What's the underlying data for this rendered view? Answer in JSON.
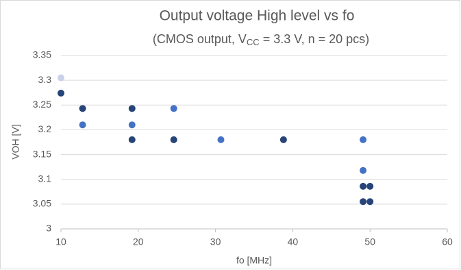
{
  "chart_data": {
    "type": "scatter",
    "title": "Output voltage High level vs fo",
    "subtitle": {
      "before": "(CMOS output, V",
      "sub": "CC",
      "after": " = 3.3 V, n = 20 pcs)"
    },
    "x_label": "fo [MHz]",
    "y_label": "VOH [V]",
    "xlim": [
      10,
      60
    ],
    "xticks": [
      10,
      20,
      30,
      40,
      50,
      60
    ],
    "ylim": [
      3,
      3.35
    ],
    "yticks": [
      3,
      3.05,
      3.1,
      3.15,
      3.2,
      3.25,
      3.3,
      3.35
    ],
    "grid": true,
    "series": [
      {
        "color": "#c8d2ea",
        "x": [
          10
        ],
        "values": [
          3.305
        ]
      },
      {
        "color": "#264478",
        "x": [
          10,
          12.8,
          19.2,
          19.2,
          24.6,
          38.8,
          49.1,
          50,
          49.1,
          50
        ],
        "values": [
          3.274,
          3.243,
          3.243,
          3.18,
          3.18,
          3.18,
          3.086,
          3.086,
          3.055,
          3.055
        ]
      },
      {
        "color": "#4472c4",
        "x": [
          12.8,
          19.2,
          24.6,
          30.7,
          49.1,
          49.1
        ],
        "values": [
          3.21,
          3.21,
          3.243,
          3.18,
          3.18,
          3.118
        ]
      }
    ]
  }
}
